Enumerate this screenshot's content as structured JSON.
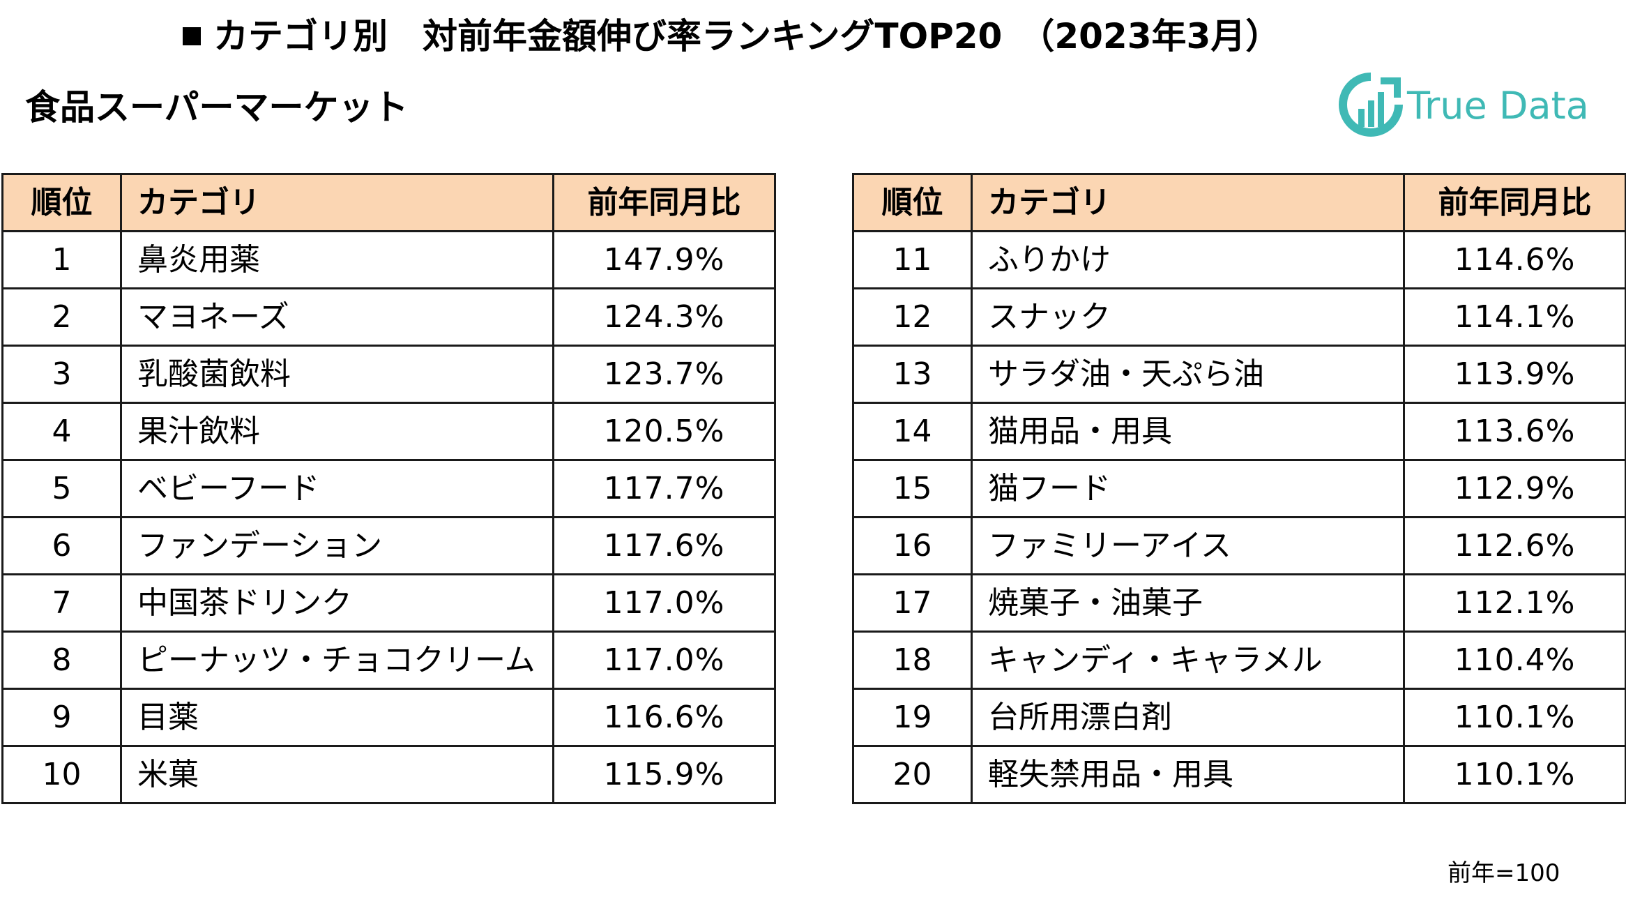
{
  "header": {
    "title": "カテゴリ別　対前年金額伸び率ランキングTOP20　（2023年3月）",
    "subtitle": "食品スーパーマーケット"
  },
  "logo": {
    "text": "True Data",
    "icon": "true-data-logo-icon",
    "color": "#3fb9b5"
  },
  "table": {
    "headers": {
      "rank": "順位",
      "category": "カテゴリ",
      "ratio": "前年同月比"
    },
    "header_bg": "#fbd6b3",
    "left_rows": [
      {
        "rank": "1",
        "category": "鼻炎用薬",
        "ratio": "147.9%"
      },
      {
        "rank": "2",
        "category": "マヨネーズ",
        "ratio": "124.3%"
      },
      {
        "rank": "3",
        "category": "乳酸菌飲料",
        "ratio": "123.7%"
      },
      {
        "rank": "4",
        "category": "果汁飲料",
        "ratio": "120.5%"
      },
      {
        "rank": "5",
        "category": "ベビーフード",
        "ratio": "117.7%"
      },
      {
        "rank": "6",
        "category": "ファンデーション",
        "ratio": "117.6%"
      },
      {
        "rank": "7",
        "category": "中国茶ドリンク",
        "ratio": "117.0%"
      },
      {
        "rank": "8",
        "category": "ピーナッツ・チョコクリーム",
        "ratio": "117.0%"
      },
      {
        "rank": "9",
        "category": "目薬",
        "ratio": "116.6%"
      },
      {
        "rank": "10",
        "category": "米菓",
        "ratio": "115.9%"
      }
    ],
    "right_rows": [
      {
        "rank": "11",
        "category": "ふりかけ",
        "ratio": "114.6%"
      },
      {
        "rank": "12",
        "category": "スナック",
        "ratio": "114.1%"
      },
      {
        "rank": "13",
        "category": "サラダ油・天ぷら油",
        "ratio": "113.9%"
      },
      {
        "rank": "14",
        "category": "猫用品・用具",
        "ratio": "113.6%"
      },
      {
        "rank": "15",
        "category": "猫フード",
        "ratio": "112.9%"
      },
      {
        "rank": "16",
        "category": "ファミリーアイス",
        "ratio": "112.6%"
      },
      {
        "rank": "17",
        "category": "焼菓子・油菓子",
        "ratio": "112.1%"
      },
      {
        "rank": "18",
        "category": "キャンディ・キャラメル",
        "ratio": "110.4%"
      },
      {
        "rank": "19",
        "category": "台所用漂白剤",
        "ratio": "110.1%"
      },
      {
        "rank": "20",
        "category": "軽失禁用品・用具",
        "ratio": "110.1%"
      }
    ]
  },
  "footnote": "前年=100"
}
